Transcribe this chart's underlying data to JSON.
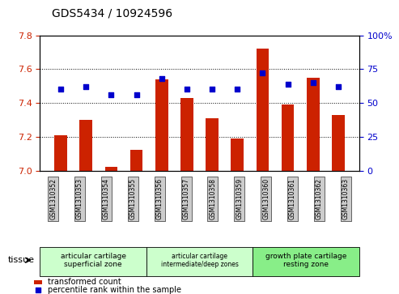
{
  "title": "GDS5434 / 10924596",
  "samples": [
    "GSM1310352",
    "GSM1310353",
    "GSM1310354",
    "GSM1310355",
    "GSM1310356",
    "GSM1310357",
    "GSM1310358",
    "GSM1310359",
    "GSM1310360",
    "GSM1310361",
    "GSM1310362",
    "GSM1310363"
  ],
  "bar_values": [
    7.21,
    7.3,
    7.02,
    7.12,
    7.54,
    7.43,
    7.31,
    7.19,
    7.72,
    7.39,
    7.55,
    7.33
  ],
  "percentile_values": [
    60,
    62,
    56,
    56,
    68,
    60,
    60,
    60,
    72,
    64,
    65,
    62
  ],
  "bar_color": "#cc2200",
  "dot_color": "#0000cc",
  "ylim_left": [
    7.0,
    7.8
  ],
  "ylim_right": [
    0,
    100
  ],
  "yticks_left": [
    7.0,
    7.2,
    7.4,
    7.6,
    7.8
  ],
  "yticks_right": [
    0,
    25,
    50,
    75,
    100
  ],
  "ytick_labels_right": [
    "0",
    "25",
    "50",
    "75",
    "100%"
  ],
  "groups": [
    {
      "label": "articular cartilage\nsuperficial zone",
      "start": 0,
      "end": 3,
      "color": "#ccffcc"
    },
    {
      "label": "articular cartilage\nintermediate/deep zones",
      "start": 4,
      "end": 7,
      "color": "#ccffcc"
    },
    {
      "label": "growth plate cartilage\nresting zone",
      "start": 8,
      "end": 11,
      "color": "#88ee88"
    }
  ],
  "tissue_label": "tissue",
  "legend_bar_label": "transformed count",
  "legend_dot_label": "percentile rank within the sample",
  "bar_width": 0.5,
  "grid_color": "#000000",
  "bg_color": "#dddddd",
  "plot_bg": "#ffffff"
}
